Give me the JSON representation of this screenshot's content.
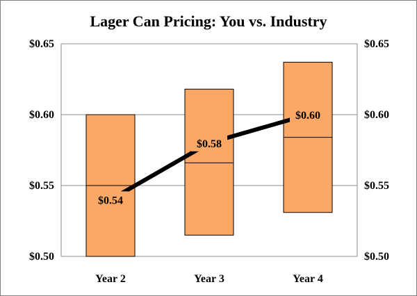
{
  "chart_data": {
    "type": "box-range-with-line",
    "title": "Lager Can Pricing: You vs. Industry",
    "categories": [
      "Year 2",
      "Year 3",
      "Year 4"
    ],
    "industry_range": [
      {
        "low": 0.5,
        "median": 0.55,
        "high": 0.6
      },
      {
        "low": 0.515,
        "median": 0.566,
        "high": 0.618
      },
      {
        "low": 0.531,
        "median": 0.584,
        "high": 0.637
      }
    ],
    "your_price": {
      "values": [
        0.54,
        0.58,
        0.6
      ],
      "labels": [
        "$0.54",
        "$0.58",
        "$0.60"
      ]
    },
    "y_axis": {
      "ylim": [
        0.5,
        0.65
      ],
      "ticks": [
        0.5,
        0.55,
        0.6,
        0.65
      ],
      "tick_labels": [
        "$0.50",
        "$0.55",
        "$0.60",
        "$0.65"
      ],
      "secondary_axis_right": true
    },
    "grid": "horizontal",
    "colors": {
      "box_fill": "#fba867",
      "box_stroke": "#000000",
      "line": "#000000",
      "grid": "#8c8c8c"
    }
  }
}
